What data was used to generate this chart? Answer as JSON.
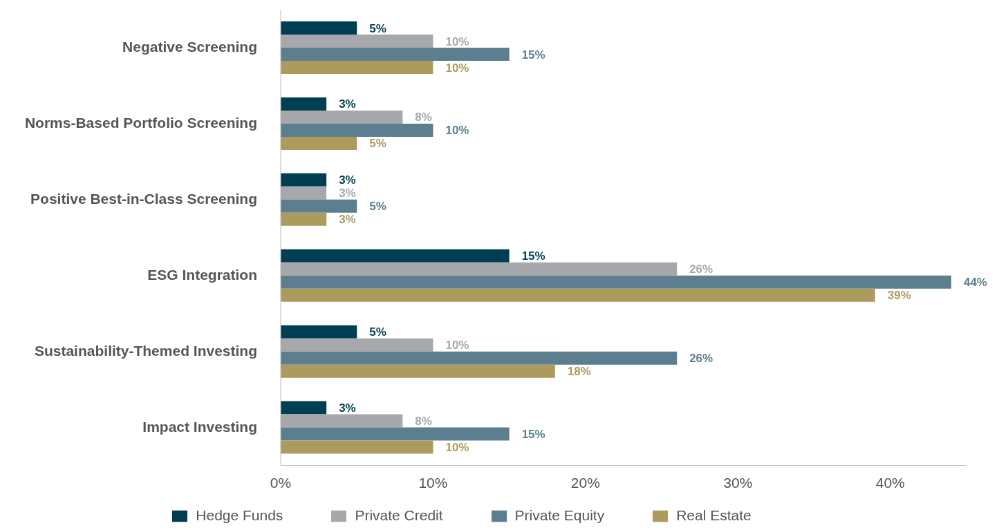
{
  "chart_data": {
    "type": "bar",
    "orientation": "horizontal",
    "categories": [
      "Negative Screening",
      "Norms-Based Portfolio Screening",
      "Positive Best-in-Class Screening",
      "ESG Integration",
      "Sustainability-Themed Investing",
      "Impact Investing"
    ],
    "series": [
      {
        "name": "Hedge Funds",
        "color": "#003f52",
        "values": [
          5,
          3,
          3,
          15,
          5,
          3
        ],
        "value_labels": [
          "5%",
          "3%",
          "3%",
          "15%",
          "5%",
          "3%"
        ]
      },
      {
        "name": "Private Credit",
        "color": "#a7a8ab",
        "values": [
          10,
          8,
          3,
          26,
          10,
          8
        ],
        "value_labels": [
          "10%",
          "8%",
          "3%",
          "26%",
          "10%",
          "8%"
        ]
      },
      {
        "name": "Private Equity",
        "color": "#5b7f8e",
        "values": [
          15,
          10,
          5,
          44,
          26,
          15
        ],
        "value_labels": [
          "15%",
          "10%",
          "5%",
          "44%",
          "26%",
          "15%"
        ]
      },
      {
        "name": "Real Estate",
        "color": "#ad9b5d",
        "values": [
          10,
          5,
          3,
          39,
          18,
          10
        ],
        "value_labels": [
          "10%",
          "5%",
          "3%",
          "39%",
          "18%",
          "10%"
        ]
      }
    ],
    "xlim": [
      0,
      45
    ],
    "xticks": [
      {
        "value": 0,
        "label": "0%"
      },
      {
        "value": 10,
        "label": "10%"
      },
      {
        "value": 20,
        "label": "20%"
      },
      {
        "value": 30,
        "label": "30%"
      },
      {
        "value": 40,
        "label": "40%"
      }
    ],
    "grid": false,
    "legend": "bottom"
  }
}
